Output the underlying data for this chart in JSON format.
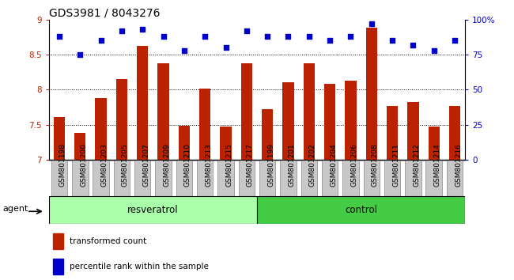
{
  "title": "GDS3981 / 8043276",
  "samples": [
    "GSM801198",
    "GSM801200",
    "GSM801203",
    "GSM801205",
    "GSM801207",
    "GSM801209",
    "GSM801210",
    "GSM801213",
    "GSM801215",
    "GSM801217",
    "GSM801199",
    "GSM801201",
    "GSM801202",
    "GSM801204",
    "GSM801206",
    "GSM801208",
    "GSM801211",
    "GSM801212",
    "GSM801214",
    "GSM801216"
  ],
  "bar_values": [
    7.61,
    7.38,
    7.88,
    8.15,
    8.62,
    8.38,
    7.48,
    8.02,
    7.47,
    8.38,
    7.72,
    8.1,
    8.38,
    8.08,
    8.13,
    8.88,
    7.77,
    7.82,
    7.47,
    7.77
  ],
  "percentile_values": [
    88,
    75,
    85,
    92,
    93,
    88,
    78,
    88,
    80,
    92,
    88,
    88,
    88,
    85,
    88,
    97,
    85,
    82,
    78,
    85
  ],
  "resveratrol_count": 10,
  "control_count": 10,
  "ylim": [
    7.0,
    9.0
  ],
  "yticks": [
    7.0,
    7.5,
    8.0,
    8.5,
    9.0
  ],
  "bar_color": "#bb2200",
  "dot_color": "#0000cc",
  "resveratrol_color": "#aaffaa",
  "control_color": "#44cc44",
  "agent_label": "agent",
  "resveratrol_label": "resveratrol",
  "control_label": "control",
  "legend_bar_label": "transformed count",
  "legend_dot_label": "percentile rank within the sample",
  "right_yticks": [
    0,
    25,
    50,
    75,
    100
  ],
  "right_yticklabels": [
    "0",
    "25",
    "50",
    "75",
    "100%"
  ],
  "xtick_bg_color": "#c8c8c8",
  "title_fontsize": 10,
  "tick_label_fontsize": 6.5,
  "grid_lines": [
    7.5,
    8.0,
    8.5
  ]
}
